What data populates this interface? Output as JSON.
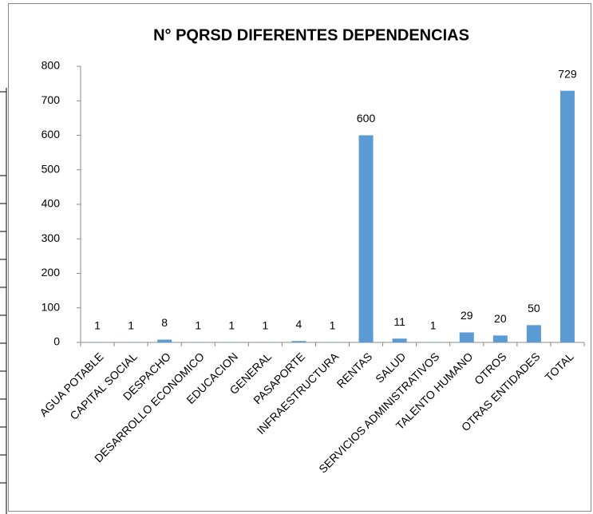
{
  "chart_data": {
    "type": "bar",
    "title": "N° PQRSD DIFERENTES DEPENDENCIAS",
    "categories": [
      "AGUA POTABLE",
      "CAPITAL SOCIAL",
      "DESPACHO",
      "DESARROLLO ECONOMICO",
      "EDUCACION",
      "GENERAL",
      "PASAPORTE",
      "INFRAESTRUCTURA",
      "RENTAS",
      "SALUD",
      "SERVICIOS ADMINISTRATIVOS",
      "TALENTO HUMANO",
      "OTROS",
      "OTRAS ENTIDADES",
      "TOTAL"
    ],
    "values": [
      1,
      1,
      8,
      1,
      1,
      1,
      4,
      1,
      600,
      11,
      1,
      29,
      20,
      50,
      729
    ],
    "color": "#5b9bd5",
    "ylim": [
      0,
      800
    ],
    "yticks": [
      0,
      100,
      200,
      300,
      400,
      500,
      600,
      700,
      800
    ],
    "grid": false
  }
}
